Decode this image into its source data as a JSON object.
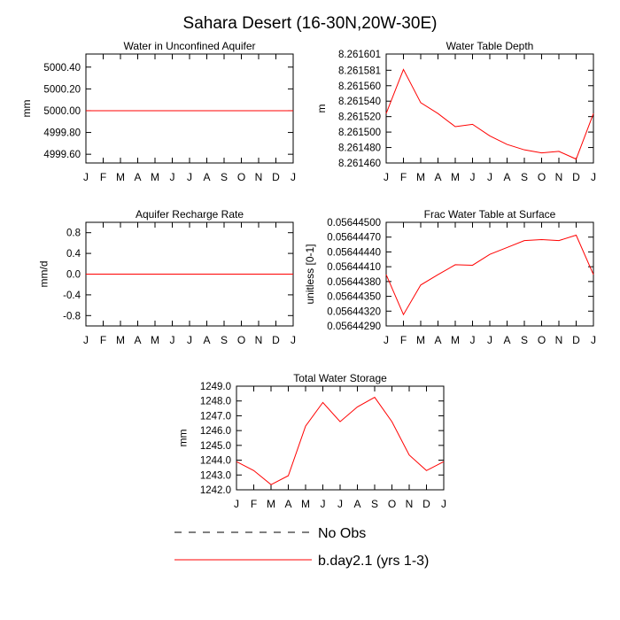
{
  "title": "Sahara Desert (16-30N,20W-30E)",
  "legend": {
    "no_obs_label": "No Obs",
    "model_label": "b.day2.1 (yrs 1-3)",
    "model_color": "#ff0000",
    "obs_color": "#000000",
    "placement": "bottom-center"
  },
  "chart_data": [
    {
      "type": "line",
      "title": "Water in Unconfined Aquifer",
      "ylabel": "mm",
      "categories": [
        "J",
        "F",
        "M",
        "A",
        "M",
        "J",
        "J",
        "A",
        "S",
        "O",
        "N",
        "D",
        "J"
      ],
      "yticks": [
        4999.6,
        4999.8,
        5000.0,
        5000.2,
        5000.4
      ],
      "ytick_labels": [
        "4999.60",
        "4999.80",
        "5000.00",
        "5000.20",
        "5000.40"
      ],
      "ylim": [
        4999.52,
        5000.52
      ],
      "series": [
        {
          "name": "b.day2.1 (yrs 1-3)",
          "color": "#ff0000",
          "values": [
            5000.0,
            5000.0,
            5000.0,
            5000.0,
            5000.0,
            5000.0,
            5000.0,
            5000.0,
            5000.0,
            5000.0,
            5000.0,
            5000.0,
            5000.0
          ]
        }
      ]
    },
    {
      "type": "line",
      "title": "Water Table Depth",
      "ylabel": "m",
      "categories": [
        "J",
        "F",
        "M",
        "A",
        "M",
        "J",
        "J",
        "A",
        "S",
        "O",
        "N",
        "D",
        "J"
      ],
      "yticks": [
        8.26146,
        8.26148,
        8.2615,
        8.26152,
        8.26154,
        8.26156,
        8.26158,
        8.261601
      ],
      "ytick_labels": [
        "8.261460",
        "8.261480",
        "8.261500",
        "8.261520",
        "8.261540",
        "8.261560",
        "8.261581",
        "8.261601"
      ],
      "ylim": [
        8.26146,
        8.261601
      ],
      "series": [
        {
          "name": "b.day2.1 (yrs 1-3)",
          "color": "#ff0000",
          "values": [
            8.261524,
            8.261581,
            8.261538,
            8.261524,
            8.261507,
            8.26151,
            8.261495,
            8.261484,
            8.261477,
            8.261473,
            8.261475,
            8.261465,
            8.261524
          ]
        }
      ]
    },
    {
      "type": "line",
      "title": "Aquifer Recharge Rate",
      "ylabel": "mm/d",
      "categories": [
        "J",
        "F",
        "M",
        "A",
        "M",
        "J",
        "J",
        "A",
        "S",
        "O",
        "N",
        "D",
        "J"
      ],
      "yticks": [
        -0.8,
        -0.4,
        0.0,
        0.4,
        0.8
      ],
      "ytick_labels": [
        "-0.8",
        "-0.4",
        "0.0",
        "0.4",
        "0.8"
      ],
      "ylim": [
        -1.0,
        1.0
      ],
      "series": [
        {
          "name": "b.day2.1 (yrs 1-3)",
          "color": "#ff0000",
          "values": [
            0,
            0,
            0,
            0,
            0,
            0,
            0,
            0,
            0,
            0,
            0,
            0,
            0
          ]
        }
      ]
    },
    {
      "type": "line",
      "title": "Frac Water Table at Surface",
      "ylabel": "unitless [0-1]",
      "categories": [
        "J",
        "F",
        "M",
        "A",
        "M",
        "J",
        "J",
        "A",
        "S",
        "O",
        "N",
        "D",
        "J"
      ],
      "yticks": [
        0.0564429,
        0.0564432,
        0.0564435,
        0.0564438,
        0.0564441,
        0.0564444,
        0.0564447,
        0.056445
      ],
      "ytick_labels": [
        "0.05644290",
        "0.05644320",
        "0.05644350",
        "0.05644380",
        "0.05644410",
        "0.05644440",
        "0.05644470",
        "0.05644500"
      ],
      "ylim": [
        0.0564429,
        0.056445
      ],
      "series": [
        {
          "name": "b.day2.1 (yrs 1-3)",
          "color": "#ff0000",
          "values": [
            0.05644394,
            0.05644313,
            0.05644373,
            0.05644394,
            0.05644414,
            0.05644413,
            0.05644435,
            0.05644449,
            0.05644463,
            0.05644465,
            0.05644463,
            0.05644474,
            0.05644394
          ]
        }
      ]
    },
    {
      "type": "line",
      "title": "Total Water Storage",
      "ylabel": "mm",
      "categories": [
        "J",
        "F",
        "M",
        "A",
        "M",
        "J",
        "J",
        "A",
        "S",
        "O",
        "N",
        "D",
        "J"
      ],
      "yticks": [
        1242,
        1243,
        1244,
        1245,
        1246,
        1247,
        1248,
        1249
      ],
      "ytick_labels": [
        "1242.0",
        "1243.0",
        "1244.0",
        "1245.0",
        "1246.0",
        "1247.0",
        "1248.0",
        "1249.0"
      ],
      "ylim": [
        1242,
        1249
      ],
      "series": [
        {
          "name": "b.day2.1 (yrs 1-3)",
          "color": "#ff0000",
          "values": [
            1243.9,
            1243.3,
            1242.35,
            1242.95,
            1246.3,
            1247.9,
            1246.6,
            1247.6,
            1248.25,
            1246.6,
            1244.35,
            1243.3,
            1243.9
          ]
        }
      ]
    }
  ]
}
